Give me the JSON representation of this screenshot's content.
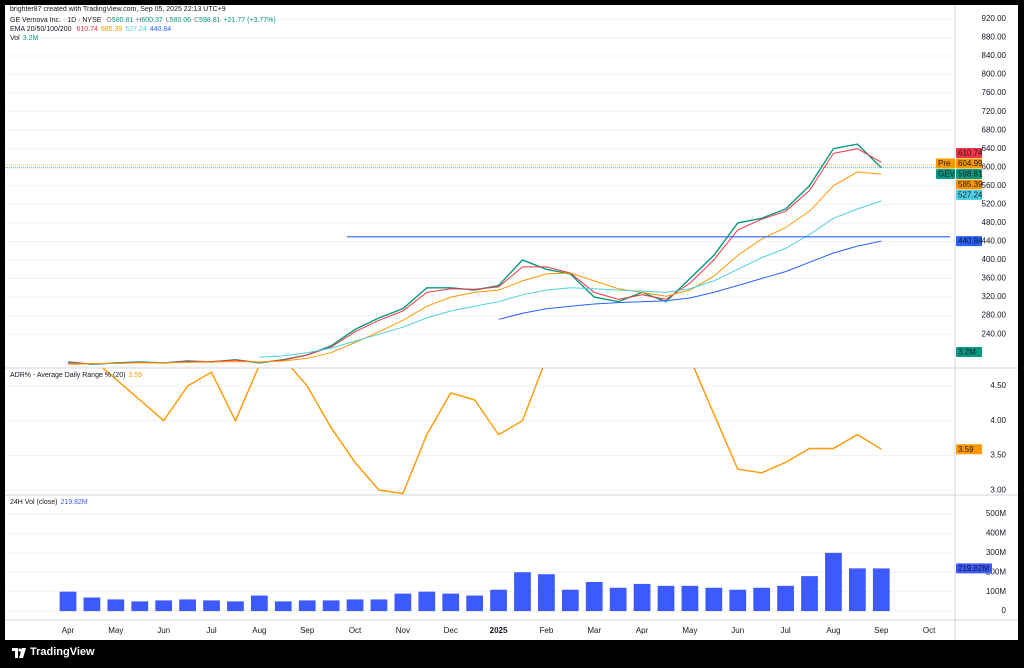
{
  "header": {
    "credit": "brighter87 created with TradingView.com, Sep 05, 2025 22:13 UTC+9",
    "symbol": "GE Vernova Inc. · 1D · NYSE",
    "ohlc": [
      {
        "label": "O",
        "value": 580.81
      },
      {
        "label": "H",
        "value": 600.37
      },
      {
        "label": "L",
        "value": 580.06
      },
      {
        "label": "C",
        "value": 598.81
      }
    ],
    "change": "+21.77 (+3.77%)",
    "ema_label": "EMA 20/50/100/200",
    "vol_label": "Vol",
    "vol_value": "3.2M"
  },
  "footer": {
    "logo": "TradingView"
  },
  "chart_data": [
    {
      "type": "line",
      "series": [
        {
          "name": "GEV",
          "color": "#089981",
          "values": [
            180,
            175,
            178,
            180,
            178,
            182,
            180,
            185,
            178,
            185,
            195,
            215,
            250,
            275,
            295,
            340,
            340,
            335,
            345,
            400,
            380,
            370,
            320,
            310,
            330,
            310,
            360,
            410,
            480,
            490,
            510,
            560,
            640,
            650,
            598.81,
            null,
            null
          ]
        },
        {
          "color": "#f23645",
          "values": [
            178,
            176,
            177,
            179,
            178,
            181,
            181,
            184,
            179,
            184,
            195,
            212,
            245,
            270,
            290,
            330,
            338,
            337,
            342,
            385,
            385,
            372,
            330,
            315,
            325,
            315,
            350,
            400,
            465,
            488,
            505,
            550,
            630,
            640,
            610.74,
            null,
            null
          ]
        },
        {
          "color": "#ff9800",
          "values": [
            175,
            176,
            177,
            178,
            178,
            179,
            180,
            181,
            180,
            182,
            188,
            200,
            222,
            245,
            270,
            300,
            320,
            330,
            335,
            355,
            370,
            372,
            355,
            338,
            330,
            322,
            335,
            365,
            410,
            445,
            470,
            505,
            560,
            590,
            585.39,
            null,
            null
          ]
        },
        {
          "color": "#4dd0e1",
          "values": [
            null,
            null,
            null,
            null,
            null,
            null,
            null,
            null,
            190,
            193,
            200,
            210,
            225,
            240,
            255,
            275,
            290,
            300,
            310,
            325,
            335,
            340,
            338,
            335,
            333,
            330,
            338,
            355,
            380,
            405,
            425,
            455,
            490,
            510,
            527.24,
            null,
            null
          ]
        },
        {
          "color": "#2962ff",
          "values": [
            null,
            null,
            null,
            null,
            null,
            null,
            null,
            null,
            null,
            null,
            null,
            null,
            null,
            null,
            null,
            null,
            null,
            null,
            272,
            285,
            295,
            300,
            305,
            308,
            310,
            312,
            318,
            330,
            345,
            360,
            375,
            395,
            415,
            430,
            440.84,
            null,
            null
          ]
        }
      ],
      "premarket": {
        "label": "Pre",
        "value": 604.99,
        "color": "#ff9800"
      },
      "levels": [
        450
      ],
      "ylim": [
        167,
        935
      ],
      "yticks": [
        {
          "value": 240,
          "label": "240.00"
        },
        {
          "value": 280,
          "label": "280.00"
        },
        {
          "value": 320,
          "label": "320.00"
        },
        {
          "value": 360,
          "label": "360.00"
        },
        {
          "value": 400,
          "label": "400.00"
        },
        {
          "value": 440,
          "label": "440.00"
        },
        {
          "value": 480,
          "label": "480.00"
        },
        {
          "value": 520,
          "label": "520.00"
        },
        {
          "value": 560,
          "label": "560.00"
        },
        {
          "value": 600,
          "label": "600.00"
        },
        {
          "value": 640,
          "label": "640.00"
        },
        {
          "value": 680,
          "label": "680.00"
        },
        {
          "value": 720,
          "label": "720.00"
        },
        {
          "value": 760,
          "label": "760.00"
        },
        {
          "value": 800,
          "label": "800.00"
        },
        {
          "value": 840,
          "label": "840.00"
        },
        {
          "value": 880,
          "label": "880.00"
        },
        {
          "value": 920,
          "label": "920.00"
        }
      ]
    },
    {
      "type": "line",
      "title": "ADR% - Average Daily Range % (20)",
      "series": [
        {
          "color": "#ff9800",
          "values": [
            4.9,
            4.9,
            4.6,
            4.3,
            4.0,
            4.5,
            4.7,
            4.0,
            4.8,
            4.9,
            4.5,
            3.9,
            3.4,
            3.0,
            2.95,
            3.8,
            4.4,
            4.3,
            3.8,
            4.0,
            4.9,
            4.9,
            4.9,
            4.9,
            4.9,
            4.9,
            4.9,
            4.1,
            3.3,
            3.25,
            3.4,
            3.6,
            3.6,
            3.8,
            3.59,
            null,
            null
          ]
        }
      ],
      "ylim": [
        2.93,
        4.76
      ],
      "yticks": [
        {
          "value": 3,
          "label": "3.00"
        },
        {
          "value": 3.5,
          "label": "3.50"
        },
        {
          "value": 4,
          "label": "4.00"
        },
        {
          "value": 4.5,
          "label": "4.50"
        }
      ]
    },
    {
      "type": "bar",
      "title": "24H Vol (close)",
      "color": "#3d5afe",
      "categories": [
        "Apr",
        null,
        "May",
        null,
        "Jun",
        null,
        "Jul",
        null,
        "Aug",
        null,
        "Sep",
        null,
        "Oct",
        null,
        "Nov",
        null,
        "Dec",
        null,
        "2025",
        null,
        "Feb",
        null,
        "Mar",
        null,
        "Apr",
        null,
        "May",
        null,
        "Jun",
        null,
        "Jul",
        null,
        "Aug",
        null,
        "Sep",
        null,
        "Oct"
      ],
      "values": [
        100,
        70,
        60,
        50,
        55,
        60,
        55,
        50,
        80,
        50,
        55,
        55,
        60,
        60,
        90,
        100,
        90,
        80,
        110,
        200,
        190,
        110,
        150,
        120,
        140,
        130,
        130,
        120,
        110,
        120,
        130,
        180,
        300,
        220,
        219.82,
        null,
        null
      ],
      "value_labels": [
        null,
        null,
        null,
        null,
        null,
        null,
        null,
        null,
        null,
        null,
        null,
        null,
        null,
        null,
        null,
        null,
        null,
        null,
        null,
        null,
        null,
        null,
        null,
        null,
        null,
        null,
        null,
        null,
        null,
        null,
        null,
        null,
        null,
        null,
        "219.82M",
        null,
        null
      ],
      "ylim": [
        -46,
        598
      ],
      "yticks": [
        0,
        {
          "value": 100,
          "label": "100M"
        },
        {
          "value": 200,
          "label": "200M"
        },
        {
          "value": 300,
          "label": "300M"
        },
        {
          "value": 400,
          "label": "400M"
        },
        {
          "value": 500,
          "label": "500M"
        }
      ]
    }
  ]
}
